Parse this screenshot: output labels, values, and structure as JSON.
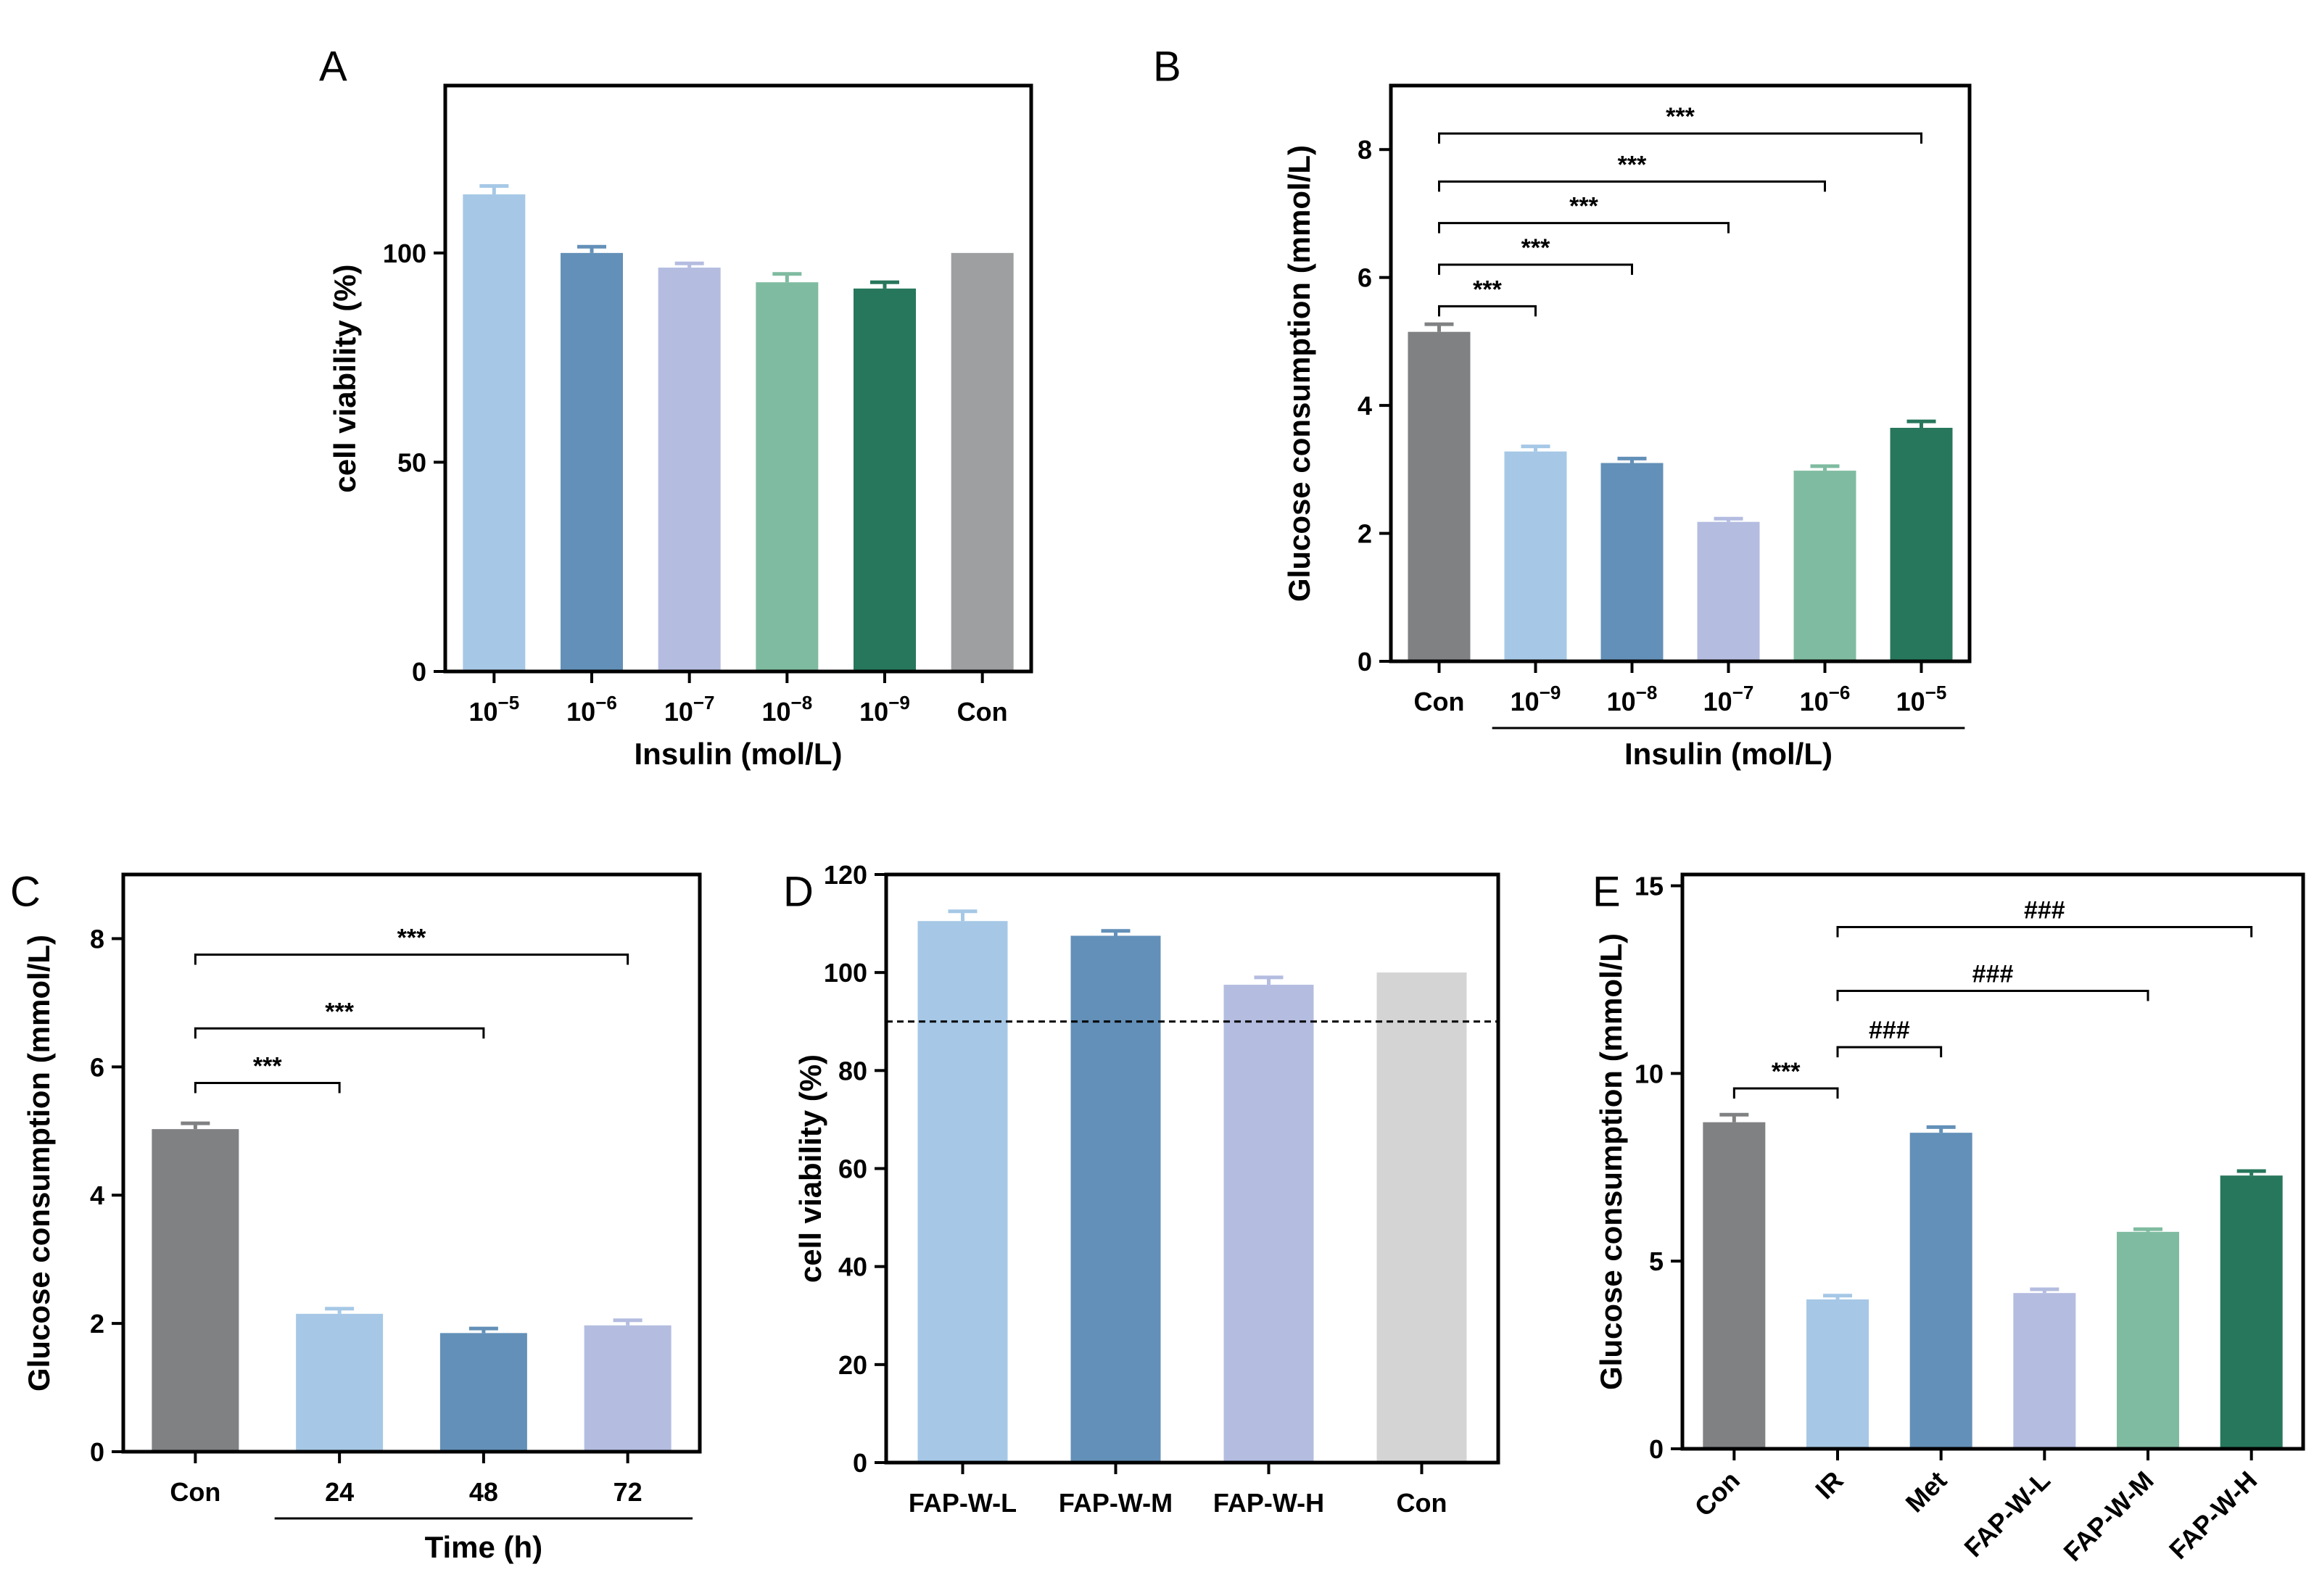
{
  "chart_data": [
    {
      "id": "A",
      "type": "bar",
      "panel_label": "A",
      "categories": [
        "10^-5",
        "10^-6",
        "10^-7",
        "10^-8",
        "10^-9",
        "Con"
      ],
      "category_labels": [
        {
          "base": "10",
          "exp": "−5"
        },
        {
          "base": "10",
          "exp": "−6"
        },
        {
          "base": "10",
          "exp": "−7"
        },
        {
          "base": "10",
          "exp": "−8"
        },
        {
          "base": "10",
          "exp": "−9"
        },
        {
          "base": "Con",
          "exp": ""
        }
      ],
      "values": [
        114,
        100,
        96.5,
        93,
        91.5,
        100
      ],
      "errors": [
        2,
        1.5,
        1,
        2,
        1.5,
        0
      ],
      "colors": [
        "#a6c8e6",
        "#6390b8",
        "#b4bde0",
        "#7fbba0",
        "#27775c",
        "#9e9fa1"
      ],
      "ylim": [
        0,
        140
      ],
      "yticks": [
        0,
        50,
        100
      ],
      "xlabel": "Insulin (mol/L)",
      "ylabel": "cell viability (%)",
      "significance": []
    },
    {
      "id": "B",
      "type": "bar",
      "panel_label": "B",
      "categories": [
        "Con",
        "10^-9",
        "10^-8",
        "10^-7",
        "10^-6",
        "10^-5"
      ],
      "category_labels": [
        {
          "base": "Con",
          "exp": ""
        },
        {
          "base": "10",
          "exp": "−9"
        },
        {
          "base": "10",
          "exp": "−8"
        },
        {
          "base": "10",
          "exp": "−7"
        },
        {
          "base": "10",
          "exp": "−6"
        },
        {
          "base": "10",
          "exp": "−5"
        }
      ],
      "values": [
        5.15,
        3.28,
        3.1,
        2.18,
        2.98,
        3.65
      ],
      "errors": [
        0.12,
        0.08,
        0.07,
        0.05,
        0.07,
        0.1
      ],
      "colors": [
        "#808183",
        "#a6c8e6",
        "#6390b8",
        "#b4bde0",
        "#7fbba0",
        "#27775c"
      ],
      "ylim": [
        0,
        9
      ],
      "yticks": [
        0,
        2,
        4,
        6,
        8
      ],
      "xlabel": "Insulin (mol/L)",
      "ylabel": "Glucose consumption (mmol/L)",
      "xlabel_underline": true,
      "significance": [
        {
          "from": 0,
          "to": 1,
          "label": "***",
          "level": 5.55
        },
        {
          "from": 0,
          "to": 2,
          "label": "***",
          "level": 6.2
        },
        {
          "from": 0,
          "to": 3,
          "label": "***",
          "level": 6.85
        },
        {
          "from": 0,
          "to": 4,
          "label": "***",
          "level": 7.5
        },
        {
          "from": 0,
          "to": 5,
          "label": "***",
          "level": 8.25
        }
      ]
    },
    {
      "id": "C",
      "type": "bar",
      "panel_label": "C",
      "categories": [
        "Con",
        "24",
        "48",
        "72"
      ],
      "category_labels": [
        {
          "base": "Con",
          "exp": ""
        },
        {
          "base": "24",
          "exp": ""
        },
        {
          "base": "48",
          "exp": ""
        },
        {
          "base": "72",
          "exp": ""
        }
      ],
      "values": [
        5.03,
        2.15,
        1.85,
        1.97
      ],
      "errors": [
        0.09,
        0.08,
        0.07,
        0.08
      ],
      "colors": [
        "#808183",
        "#a6c8e6",
        "#6390b8",
        "#b4bde0"
      ],
      "ylim": [
        0,
        9
      ],
      "yticks": [
        0,
        2,
        4,
        6,
        8
      ],
      "xlabel": "Time (h)",
      "ylabel": "Glucose consumption (mmol/L)",
      "xlabel_underline": true,
      "significance": [
        {
          "from": 0,
          "to": 1,
          "label": "***",
          "level": 5.75
        },
        {
          "from": 0,
          "to": 2,
          "label": "***",
          "level": 6.6
        },
        {
          "from": 0,
          "to": 3,
          "label": "***",
          "level": 7.75
        }
      ]
    },
    {
      "id": "D",
      "type": "bar",
      "panel_label": "D",
      "categories": [
        "FAP-W-L",
        "FAP-W-M",
        "FAP-W-H",
        "Con"
      ],
      "category_labels": [
        {
          "base": "FAP-W-L",
          "exp": ""
        },
        {
          "base": "FAP-W-M",
          "exp": ""
        },
        {
          "base": "FAP-W-H",
          "exp": ""
        },
        {
          "base": "Con",
          "exp": ""
        }
      ],
      "values": [
        110.5,
        107.5,
        97.5,
        100
      ],
      "errors": [
        2,
        1,
        1.5,
        0
      ],
      "colors": [
        "#a6c8e6",
        "#6390b8",
        "#b4bde0",
        "#d4d4d4"
      ],
      "ylim": [
        0,
        120
      ],
      "yticks": [
        0,
        20,
        40,
        60,
        80,
        100,
        120
      ],
      "xlabel": "",
      "ylabel": "cell viability (%)",
      "reference_line": 90,
      "significance": []
    },
    {
      "id": "E",
      "type": "bar",
      "panel_label": "E",
      "categories": [
        "Con",
        "IR",
        "Met",
        "FAP-W-L",
        "FAP-W-M",
        "FAP-W-H"
      ],
      "category_labels": [
        {
          "base": "Con",
          "exp": ""
        },
        {
          "base": "IR",
          "exp": ""
        },
        {
          "base": "Met",
          "exp": ""
        },
        {
          "base": "FAP-W-L",
          "exp": ""
        },
        {
          "base": "FAP-W-M",
          "exp": ""
        },
        {
          "base": "FAP-W-H",
          "exp": ""
        }
      ],
      "values": [
        8.7,
        3.98,
        8.42,
        4.15,
        5.78,
        7.28
      ],
      "errors": [
        0.2,
        0.1,
        0.15,
        0.1,
        0.07,
        0.12
      ],
      "colors": [
        "#808183",
        "#a6c8e6",
        "#6390b8",
        "#b4bde0",
        "#7fbba0",
        "#27775c"
      ],
      "ylim": [
        0,
        15.3
      ],
      "yticks": [
        0,
        5,
        10,
        15
      ],
      "xlabel": "",
      "ylabel": "Glucose consumption (mmol/L)",
      "rotate_xticks": true,
      "significance": [
        {
          "from": 0,
          "to": 1,
          "label": "***",
          "level": 9.6
        },
        {
          "from": 1,
          "to": 2,
          "label": "###",
          "level": 10.7
        },
        {
          "from": 1,
          "to": 4,
          "label": "###",
          "level": 12.2
        },
        {
          "from": 1,
          "to": 5,
          "label": "###",
          "level": 13.9
        }
      ]
    }
  ]
}
